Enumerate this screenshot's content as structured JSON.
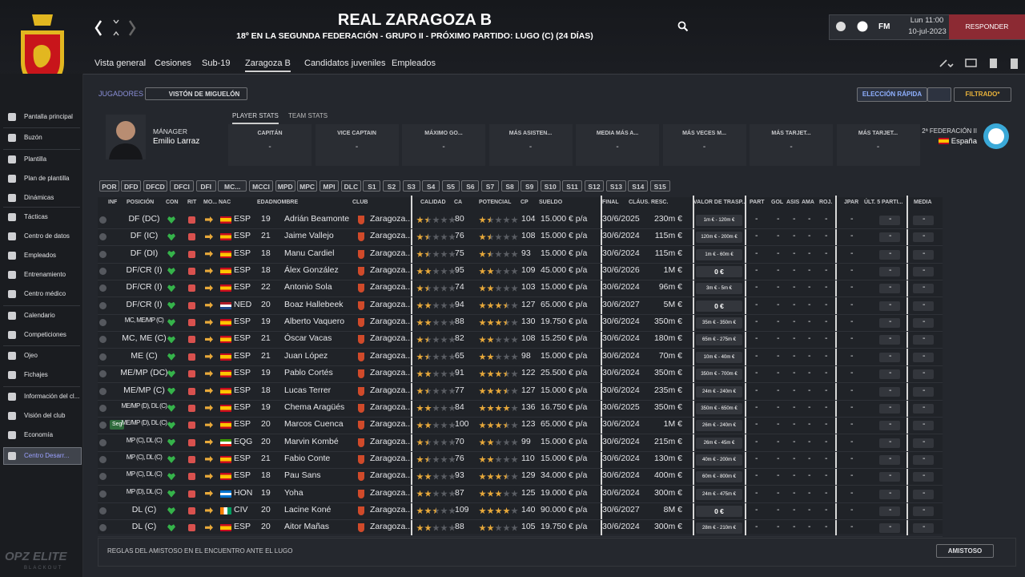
{
  "header": {
    "title": "REAL ZARAGOZA B",
    "subtitle": "18º EN LA SEGUNDA FEDERACIÓN - GRUPO II - PRÓXIMO PARTIDO: LUGO (C) (24 DÍAS)",
    "brand": "FM",
    "day": "Lun 11:00",
    "date": "10-jul-2023",
    "reply": "RESPONDER"
  },
  "nav": [
    "Vista general",
    "Cesiones",
    "Sub-19",
    "Zaragoza B",
    "Candidatos juveniles",
    "Empleados"
  ],
  "sidebar": [
    "Pantalla principal",
    "Buzón",
    "Plantilla",
    "Plan de plantilla",
    "Dinámicas",
    "Tácticas",
    "Centro de datos",
    "Empleados",
    "Entrenamiento",
    "Centro médico",
    "Calendario",
    "Competiciones",
    "Ojeo",
    "Fichajes",
    "Información del cl...",
    "Visión del club",
    "Economía",
    "Centro Desarr..."
  ],
  "toolbar": {
    "section": "JUGADORES",
    "view": "VISTÓN DE MIGUELÓN",
    "quick": "ELECCIÓN RÁPIDA",
    "filter": "FILTRADO*"
  },
  "tabs": [
    "PLAYER STATS",
    "TEAM STATS"
  ],
  "manager": {
    "label": "MÁNAGER",
    "name": "Emilio Larraz"
  },
  "stats": [
    {
      "label": "CAPITÁN",
      "value": "-"
    },
    {
      "label": "VICE CAPTAIN",
      "value": "-"
    },
    {
      "label": "MÁXIMO GO...",
      "value": "-"
    },
    {
      "label": "MÁS ASISTEN...",
      "value": "-"
    },
    {
      "label": "MEDIA MÁS A...",
      "value": "-"
    },
    {
      "label": "MÁS VECES M...",
      "value": "-"
    },
    {
      "label": "MÁS TARJET...",
      "value": "-"
    },
    {
      "label": "MÁS TARJET...",
      "value": "-"
    }
  ],
  "league": {
    "name": "2ª FEDERACIÓN II",
    "country": "España"
  },
  "filters": [
    "POR",
    "DFD",
    "DFCD",
    "DFCI",
    "DFI",
    "MC...",
    "MCCI",
    "MPD",
    "MPC",
    "MPI",
    "DLC",
    "S1",
    "S2",
    "S3",
    "S4",
    "S5",
    "S6",
    "S7",
    "S8",
    "S9",
    "S10",
    "S11",
    "S12",
    "S13",
    "S14",
    "S15"
  ],
  "table": {
    "columns": [
      "INF",
      "POSICIÓN",
      "CON",
      "RIT",
      "MO...",
      "NAC",
      "EDAD",
      "NOMBRE",
      "CLUB",
      "CALIDAD",
      "CA",
      "POTENCIAL",
      "CP",
      "SUELDO",
      "FINAL",
      "CLÁUS. RESC.",
      "VALOR DE TRASP...",
      "PART",
      "GOL",
      "ASIS",
      "AMA",
      "ROJ.",
      "JPAR",
      "ÚLT. 5 PARTI...",
      "MEDIA"
    ],
    "rows": [
      {
        "pos": "DF (DC)",
        "nat": "ESP",
        "age": 19,
        "name": "Adrián Beamonte",
        "club": "Zaragoza...",
        "calidad": 1.5,
        "ca": 80,
        "potencial": 1.5,
        "cp": 104,
        "wage": "15.000 € p/a",
        "expiry": "30/6/2025",
        "clause": "230m €",
        "value": "1m € - 120m €",
        "stats": [
          "-",
          "-",
          "-",
          "-",
          "-",
          "-",
          "-",
          "-"
        ]
      },
      {
        "pos": "DF (IC)",
        "nat": "ESP",
        "age": 21,
        "name": "Jaime Vallejo",
        "club": "Zaragoza...",
        "calidad": 1.5,
        "ca": 76,
        "potencial": 1.5,
        "cp": 108,
        "wage": "15.000 € p/a",
        "expiry": "30/6/2024",
        "clause": "115m €",
        "value": "120m € - 200m €",
        "stats": [
          "-",
          "-",
          "-",
          "-",
          "-",
          "-",
          "-",
          "-"
        ]
      },
      {
        "pos": "DF (DI)",
        "nat": "ESP",
        "age": 18,
        "name": "Manu Cardiel",
        "club": "Zaragoza...",
        "calidad": 1.5,
        "ca": 75,
        "potencial": 1.5,
        "cp": 93,
        "wage": "15.000 € p/a",
        "expiry": "30/6/2024",
        "clause": "115m €",
        "value": "1m € - 60m €",
        "stats": [
          "-",
          "-",
          "-",
          "-",
          "-",
          "-",
          "-",
          "-"
        ]
      },
      {
        "pos": "DF/CR (I)",
        "nat": "ESP",
        "age": 18,
        "name": "Álex González",
        "club": "Zaragoza...",
        "calidad": 2,
        "ca": 95,
        "potencial": 2,
        "cp": 109,
        "wage": "45.000 € p/a",
        "expiry": "30/6/2026",
        "clause": "1M €",
        "value": "0 €",
        "stats": [
          "-",
          "-",
          "-",
          "-",
          "-",
          "-",
          "-",
          "-"
        ]
      },
      {
        "pos": "DF/CR (I)",
        "nat": "ESP",
        "age": 22,
        "name": "Antonio Sola",
        "club": "Zaragoza...",
        "calidad": 1.5,
        "ca": 74,
        "potencial": 2,
        "cp": 103,
        "wage": "15.000 € p/a",
        "expiry": "30/6/2024",
        "clause": "96m €",
        "value": "3m € - 5m €",
        "stats": [
          "-",
          "-",
          "-",
          "-",
          "-",
          "-",
          "-",
          "-"
        ]
      },
      {
        "pos": "DF/CR (I)",
        "nat": "NED",
        "age": 20,
        "name": "Boaz Hallebeek",
        "club": "Zaragoza...",
        "calidad": 2,
        "ca": 94,
        "potencial": 3.5,
        "cp": 127,
        "wage": "65.000 € p/a",
        "expiry": "30/6/2027",
        "clause": "5M €",
        "value": "0 €",
        "stats": [
          "-",
          "-",
          "-",
          "-",
          "-",
          "-",
          "-",
          "-"
        ]
      },
      {
        "pos": "MC, ME/MP (C)",
        "nat": "ESP",
        "age": 19,
        "name": "Alberto Vaquero",
        "club": "Zaragoza...",
        "calidad": 2,
        "ca": 88,
        "potencial": 3.5,
        "cp": 130,
        "wage": "19.750 € p/a",
        "expiry": "30/6/2024",
        "clause": "350m €",
        "value": "35m € - 350m €",
        "stats": [
          "-",
          "-",
          "-",
          "-",
          "-",
          "-",
          "-",
          "-"
        ]
      },
      {
        "pos": "MC, ME (C)",
        "nat": "ESP",
        "age": 21,
        "name": "Óscar Vacas",
        "club": "Zaragoza...",
        "calidad": 1.5,
        "ca": 82,
        "potencial": 2,
        "cp": 108,
        "wage": "15.250 € p/a",
        "expiry": "30/6/2024",
        "clause": "180m €",
        "value": "65m € - 275m €",
        "stats": [
          "-",
          "-",
          "-",
          "-",
          "-",
          "-",
          "-",
          "-"
        ]
      },
      {
        "pos": "ME (C)",
        "nat": "ESP",
        "age": 21,
        "name": "Juan López",
        "club": "Zaragoza...",
        "calidad": 1.5,
        "ca": 65,
        "potencial": 2,
        "cp": 98,
        "wage": "15.000 € p/a",
        "expiry": "30/6/2024",
        "clause": "70m €",
        "value": "10m € - 40m €",
        "stats": [
          "-",
          "-",
          "-",
          "-",
          "-",
          "-",
          "-",
          "-"
        ]
      },
      {
        "pos": "ME/MP (DC)",
        "nat": "ESP",
        "age": 19,
        "name": "Pablo Cortés",
        "club": "Zaragoza...",
        "calidad": 2,
        "ca": 91,
        "potencial": 3.5,
        "cp": 122,
        "wage": "25.500 € p/a",
        "expiry": "30/6/2024",
        "clause": "350m €",
        "value": "350m € - 700m €",
        "stats": [
          "-",
          "-",
          "-",
          "-",
          "-",
          "-",
          "-",
          "-"
        ]
      },
      {
        "pos": "ME/MP (C)",
        "nat": "ESP",
        "age": 18,
        "name": "Lucas Terrer",
        "club": "Zaragoza...",
        "calidad": 1.5,
        "ca": 77,
        "potencial": 3.5,
        "cp": 127,
        "wage": "15.000 € p/a",
        "expiry": "30/6/2024",
        "clause": "235m €",
        "value": "24m € - 240m €",
        "stats": [
          "-",
          "-",
          "-",
          "-",
          "-",
          "-",
          "-",
          "-"
        ]
      },
      {
        "pos": "ME/MP (D), DL (C)",
        "nat": "ESP",
        "age": 19,
        "name": "Chema Aragüés",
        "club": "Zaragoza...",
        "calidad": 2,
        "ca": 84,
        "potencial": 4,
        "cp": 136,
        "wage": "16.750 € p/a",
        "expiry": "30/6/2025",
        "clause": "350m €",
        "value": "350m € - 650m €",
        "stats": [
          "-",
          "-",
          "-",
          "-",
          "-",
          "-",
          "-",
          "-"
        ]
      },
      {
        "inf": "Seg",
        "pos": "ME/MP (D), DL (C)",
        "nat": "ESP",
        "age": 20,
        "name": "Marcos Cuenca",
        "club": "Zaragoza...",
        "calidad": 2,
        "ca": 100,
        "potencial": 3.5,
        "cp": 123,
        "wage": "65.000 € p/a",
        "expiry": "30/6/2024",
        "clause": "1M €",
        "value": "26m € - 240m €",
        "stats": [
          "-",
          "-",
          "-",
          "-",
          "-",
          "-",
          "-",
          "-"
        ]
      },
      {
        "pos": "MP (C), DL (C)",
        "nat": "EQG",
        "age": 20,
        "name": "Marvin Kombé",
        "club": "Zaragoza...",
        "calidad": 1.5,
        "ca": 70,
        "potencial": 2,
        "cp": 99,
        "wage": "15.000 € p/a",
        "expiry": "30/6/2024",
        "clause": "215m €",
        "value": "26m € - 45m €",
        "stats": [
          "-",
          "-",
          "-",
          "-",
          "-",
          "-",
          "-",
          "-"
        ]
      },
      {
        "pos": "MP (C), DL (C)",
        "nat": "ESP",
        "age": 21,
        "name": "Fabio Conte",
        "club": "Zaragoza...",
        "calidad": 1.5,
        "ca": 76,
        "potencial": 2,
        "cp": 110,
        "wage": "15.000 € p/a",
        "expiry": "30/6/2024",
        "clause": "130m €",
        "value": "40m € - 200m €",
        "stats": [
          "-",
          "-",
          "-",
          "-",
          "-",
          "-",
          "-",
          "-"
        ]
      },
      {
        "pos": "MP (C), DL (C)",
        "nat": "ESP",
        "age": 18,
        "name": "Pau Sans",
        "club": "Zaragoza...",
        "calidad": 2,
        "ca": 93,
        "potencial": 3.5,
        "cp": 129,
        "wage": "34.000 € p/a",
        "expiry": "30/6/2024",
        "clause": "400m €",
        "value": "60m € - 800m €",
        "stats": [
          "-",
          "-",
          "-",
          "-",
          "-",
          "-",
          "-",
          "-"
        ]
      },
      {
        "pos": "MP (D), DL (C)",
        "nat": "HON",
        "age": 19,
        "name": "Yoha",
        "club": "Zaragoza...",
        "calidad": 2,
        "ca": 87,
        "potencial": 3,
        "cp": 125,
        "wage": "19.000 € p/a",
        "expiry": "30/6/2024",
        "clause": "300m €",
        "value": "24m € - 475m €",
        "stats": [
          "-",
          "-",
          "-",
          "-",
          "-",
          "-",
          "-",
          "-"
        ]
      },
      {
        "pos": "DL (C)",
        "nat": "CIV",
        "age": 20,
        "name": "Lacine Koné",
        "club": "Zaragoza...",
        "calidad": 2.5,
        "ca": 109,
        "potencial": 4,
        "cp": 140,
        "wage": "90.000 € p/a",
        "expiry": "30/6/2027",
        "clause": "8M €",
        "value": "0 €",
        "stats": [
          "-",
          "-",
          "-",
          "-",
          "-",
          "-",
          "-",
          "-"
        ]
      },
      {
        "pos": "DL (C)",
        "nat": "ESP",
        "age": 20,
        "name": "Aitor Mañas",
        "club": "Zaragoza...",
        "calidad": 2,
        "ca": 88,
        "potencial": 2,
        "cp": 105,
        "wage": "19.750 € p/a",
        "expiry": "30/6/2024",
        "clause": "300m €",
        "value": "28m € - 210m €",
        "stats": [
          "-",
          "-",
          "-",
          "-",
          "-",
          "-",
          "-",
          "-"
        ]
      }
    ]
  },
  "footer": {
    "rules": "REGLAS DEL AMISTOSO EN EL ENCUENTRO ANTE EL LUGO",
    "match": "AMISTOSO"
  },
  "logo": {
    "name": "OPZ ELITE",
    "sub": "BLACKOUT"
  }
}
